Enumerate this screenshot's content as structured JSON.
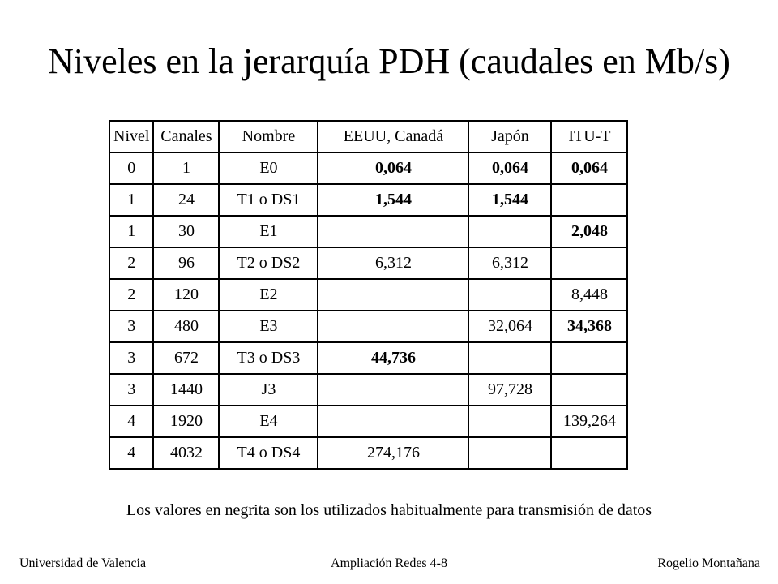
{
  "title": "Niveles en la jerarquía PDH (caudales en Mb/s)",
  "table": {
    "headers": [
      "Nivel",
      "Canales",
      "Nombre",
      "EEUU, Canadá",
      "Japón",
      "ITU-T"
    ],
    "rows": [
      {
        "nivel": "0",
        "canales": "1",
        "nombre": "E0",
        "eeuu": "0,064",
        "japon": "0,064",
        "itu": "0,064"
      },
      {
        "nivel": "1",
        "canales": "24",
        "nombre": "T1 o DS1",
        "eeuu": "1,544",
        "japon": "1,544",
        "itu": ""
      },
      {
        "nivel": "1",
        "canales": "30",
        "nombre": "E1",
        "eeuu": "",
        "japon": "",
        "itu": "2,048"
      },
      {
        "nivel": "2",
        "canales": "96",
        "nombre": "T2 o DS2",
        "eeuu": "6,312",
        "japon": "6,312",
        "itu": ""
      },
      {
        "nivel": "2",
        "canales": "120",
        "nombre": "E2",
        "eeuu": "",
        "japon": "",
        "itu": "8,448"
      },
      {
        "nivel": "3",
        "canales": "480",
        "nombre": "E3",
        "eeuu": "",
        "japon": "32,064",
        "itu": "34,368"
      },
      {
        "nivel": "3",
        "canales": "672",
        "nombre": "T3 o DS3",
        "eeuu": "44,736",
        "japon": "",
        "itu": ""
      },
      {
        "nivel": "3",
        "canales": "1440",
        "nombre": "J3",
        "eeuu": "",
        "japon": "97,728",
        "itu": ""
      },
      {
        "nivel": "4",
        "canales": "1920",
        "nombre": "E4",
        "eeuu": "",
        "japon": "",
        "itu": "139,264"
      },
      {
        "nivel": "4",
        "canales": "4032",
        "nombre": "T4 o DS4",
        "eeuu": "274,176",
        "japon": "",
        "itu": ""
      }
    ]
  },
  "note": "Los valores en negrita son los utilizados habitualmente para transmisión de datos",
  "footer": {
    "left": "Universidad de Valencia",
    "center": "Ampliación Redes 4-8",
    "right": "Rogelio Montañana"
  }
}
